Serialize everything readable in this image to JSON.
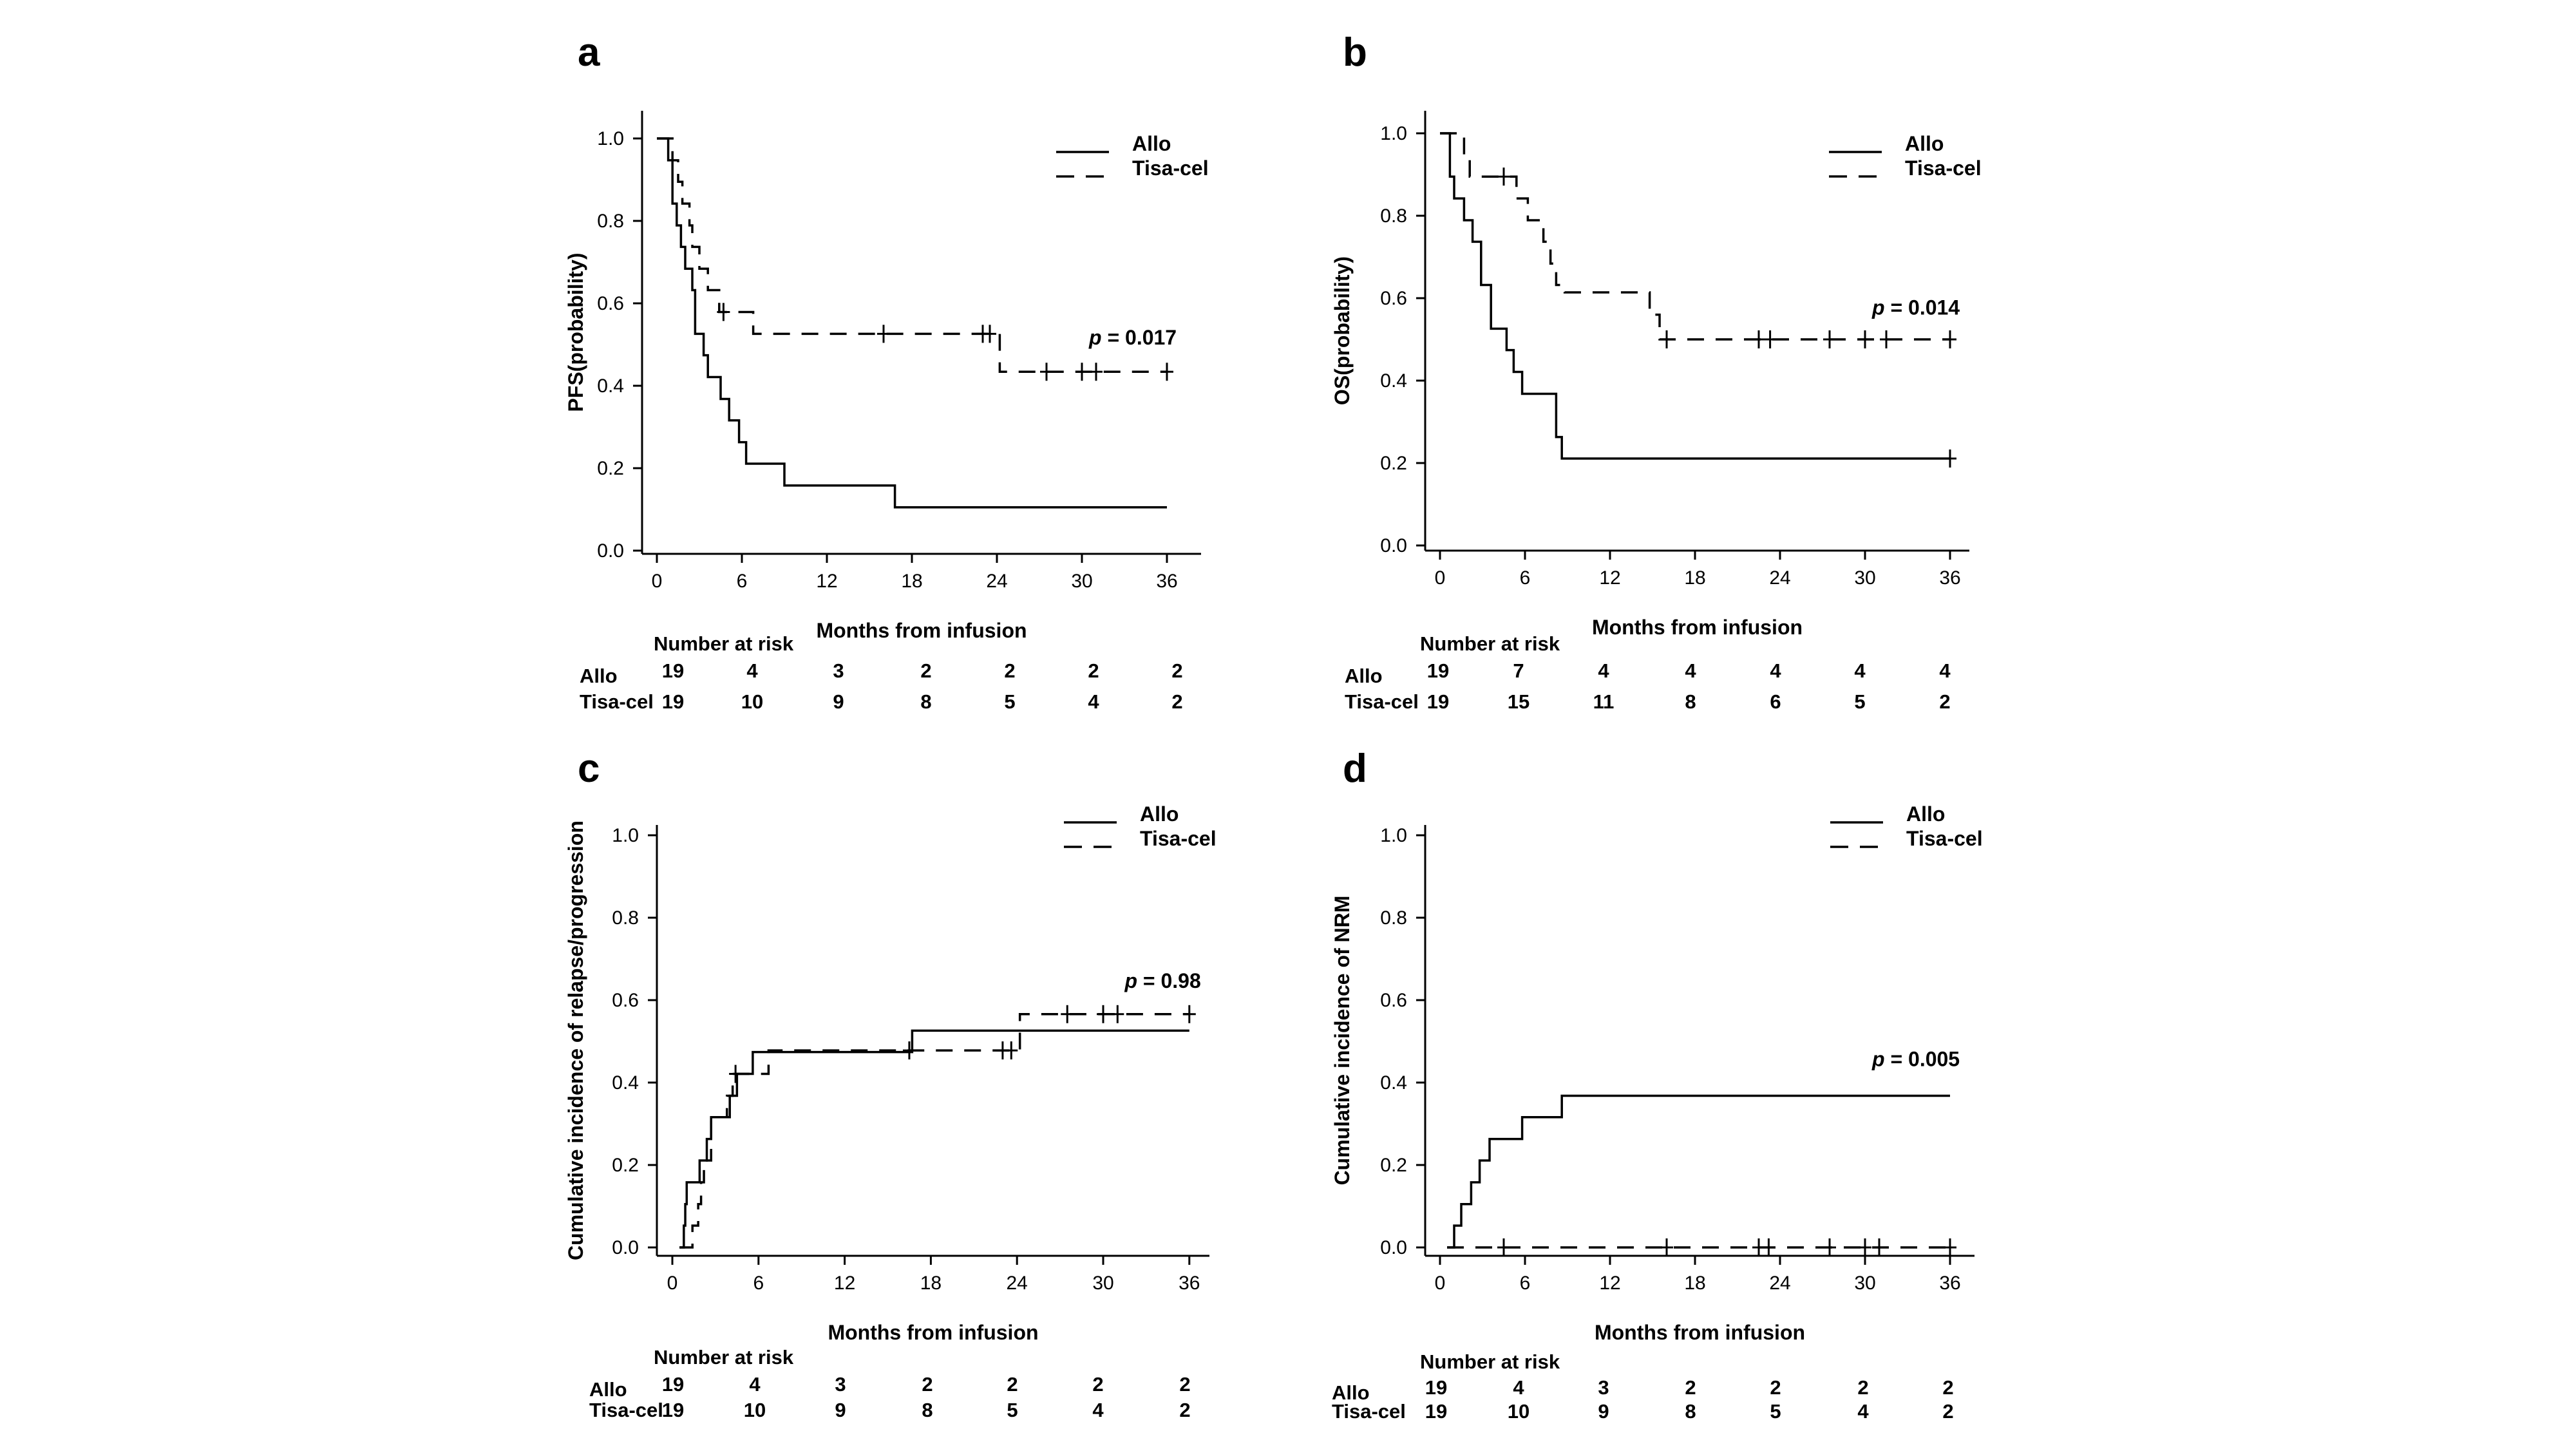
{
  "chart_data": [
    {
      "type": "line",
      "panel_label": "a",
      "xlabel": "Months from infusion",
      "ylabel": "PFS(probability)",
      "xticks": [
        0,
        6,
        12,
        18,
        24,
        30,
        36
      ],
      "yticks": [
        "0.0",
        "0.2",
        "0.4",
        "0.6",
        "0.8",
        "1.0"
      ],
      "xlim": [
        0,
        38
      ],
      "ylim": [
        0,
        1.0
      ],
      "legend_position": "top-right",
      "p_prefix": "p",
      "p_value": " = 0.017",
      "p_label_at": [
        30.5,
        0.5
      ],
      "series": [
        {
          "name": "Allo",
          "style": "solid",
          "steps": [
            [
              0,
              1.0
            ],
            [
              0.8,
              0.947
            ],
            [
              1.1,
              0.842
            ],
            [
              1.4,
              0.789
            ],
            [
              1.7,
              0.737
            ],
            [
              2.0,
              0.684
            ],
            [
              2.5,
              0.632
            ],
            [
              2.7,
              0.526
            ],
            [
              3.3,
              0.474
            ],
            [
              3.6,
              0.421
            ],
            [
              4.5,
              0.368
            ],
            [
              5.1,
              0.316
            ],
            [
              5.8,
              0.263
            ],
            [
              6.3,
              0.211
            ],
            [
              9.0,
              0.158
            ],
            [
              16.8,
              0.105
            ],
            [
              36.0,
              0.105
            ]
          ],
          "censor": []
        },
        {
          "name": "Tisa-cel",
          "style": "dashed",
          "steps": [
            [
              0,
              1.0
            ],
            [
              1.1,
              0.947
            ],
            [
              1.5,
              0.895
            ],
            [
              1.8,
              0.842
            ],
            [
              2.3,
              0.789
            ],
            [
              2.5,
              0.737
            ],
            [
              3.0,
              0.684
            ],
            [
              3.6,
              0.632
            ],
            [
              4.4,
              0.579
            ],
            [
              6.8,
              0.526
            ],
            [
              24.2,
              0.434
            ],
            [
              36.0,
              0.434
            ]
          ],
          "censor": [
            [
              4.7,
              0.579
            ],
            [
              16.0,
              0.526
            ],
            [
              23.0,
              0.526
            ],
            [
              23.5,
              0.526
            ],
            [
              27.5,
              0.434
            ],
            [
              30.0,
              0.434
            ],
            [
              31.0,
              0.434
            ],
            [
              36.0,
              0.434
            ]
          ]
        }
      ],
      "risk_table": {
        "title": "Number at risk",
        "rows": [
          {
            "label": "Allo",
            "values": [
              "19",
              "4",
              "3",
              "2",
              "2",
              "2",
              "2"
            ]
          },
          {
            "label": "Tisa-cel",
            "values": [
              "19",
              "10",
              "9",
              "8",
              "5",
              "4",
              "2"
            ]
          }
        ]
      }
    },
    {
      "type": "line",
      "panel_label": "b",
      "xlabel": "Months from infusion",
      "ylabel": "OS(probability)",
      "xticks": [
        0,
        6,
        12,
        18,
        24,
        30,
        36
      ],
      "yticks": [
        "0.0",
        "0.2",
        "0.4",
        "0.6",
        "0.8",
        "1.0"
      ],
      "xlim": [
        0,
        38
      ],
      "ylim": [
        0,
        1.0
      ],
      "legend_position": "top-right",
      "p_prefix": "p",
      "p_value": " = 0.014",
      "p_label_at": [
        30.5,
        0.56
      ],
      "series": [
        {
          "name": "Allo",
          "style": "solid",
          "steps": [
            [
              0,
              1.0
            ],
            [
              0.7,
              0.895
            ],
            [
              1.0,
              0.842
            ],
            [
              1.7,
              0.789
            ],
            [
              2.3,
              0.737
            ],
            [
              2.9,
              0.632
            ],
            [
              3.6,
              0.526
            ],
            [
              4.7,
              0.474
            ],
            [
              5.2,
              0.421
            ],
            [
              5.8,
              0.368
            ],
            [
              8.2,
              0.263
            ],
            [
              8.6,
              0.211
            ],
            [
              36.0,
              0.211
            ]
          ],
          "censor": [
            [
              36.0,
              0.211
            ]
          ]
        },
        {
          "name": "Tisa-cel",
          "style": "dashed",
          "steps": [
            [
              0,
              1.0
            ],
            [
              1.7,
              0.947
            ],
            [
              2.1,
              0.895
            ],
            [
              5.4,
              0.842
            ],
            [
              6.2,
              0.789
            ],
            [
              7.3,
              0.737
            ],
            [
              7.8,
              0.684
            ],
            [
              8.2,
              0.632
            ],
            [
              8.8,
              0.614
            ],
            [
              14.8,
              0.56
            ],
            [
              15.5,
              0.5
            ],
            [
              36.0,
              0.5
            ]
          ],
          "censor": [
            [
              4.5,
              0.895
            ],
            [
              16.0,
              0.5
            ],
            [
              22.5,
              0.5
            ],
            [
              23.3,
              0.5
            ],
            [
              27.5,
              0.5
            ],
            [
              30.0,
              0.5
            ],
            [
              31.5,
              0.5
            ],
            [
              36.0,
              0.5
            ]
          ]
        }
      ],
      "risk_table": {
        "title": "Number at risk",
        "rows": [
          {
            "label": "Allo",
            "values": [
              "19",
              "7",
              "4",
              "4",
              "4",
              "4",
              "4"
            ]
          },
          {
            "label": "Tisa-cel",
            "values": [
              "19",
              "15",
              "11",
              "8",
              "6",
              "5",
              "2"
            ]
          }
        ]
      }
    },
    {
      "type": "line",
      "panel_label": "c",
      "xlabel": "Months from infusion",
      "ylabel": "Cumulative incidence of relapse/progression",
      "xticks": [
        0,
        6,
        12,
        18,
        24,
        30,
        36
      ],
      "yticks": [
        "0.0",
        "0.2",
        "0.4",
        "0.6",
        "0.8",
        "1.0"
      ],
      "xlim": [
        0,
        38
      ],
      "ylim": [
        0,
        1.0
      ],
      "legend_position": "top-right",
      "p_prefix": "p",
      "p_value": " = 0.98",
      "p_label_at": [
        31.5,
        0.63
      ],
      "series": [
        {
          "name": "Allo",
          "style": "solid",
          "steps": [
            [
              0.5,
              0.0
            ],
            [
              0.8,
              0.053
            ],
            [
              0.9,
              0.105
            ],
            [
              1.0,
              0.158
            ],
            [
              1.9,
              0.211
            ],
            [
              2.4,
              0.263
            ],
            [
              2.7,
              0.316
            ],
            [
              4.0,
              0.368
            ],
            [
              4.5,
              0.421
            ],
            [
              5.6,
              0.474
            ],
            [
              16.7,
              0.526
            ],
            [
              36.0,
              0.526
            ]
          ],
          "censor": []
        },
        {
          "name": "Tisa-cel",
          "style": "dashed",
          "steps": [
            [
              0.5,
              0.0
            ],
            [
              1.1,
              0.0
            ],
            [
              1.4,
              0.053
            ],
            [
              1.8,
              0.105
            ],
            [
              2.0,
              0.158
            ],
            [
              2.2,
              0.211
            ],
            [
              2.7,
              0.316
            ],
            [
              3.8,
              0.368
            ],
            [
              4.2,
              0.421
            ],
            [
              6.7,
              0.478
            ],
            [
              24.2,
              0.566
            ],
            [
              36.0,
              0.566
            ]
          ],
          "censor": [
            [
              4.4,
              0.421
            ],
            [
              16.5,
              0.478
            ],
            [
              23.0,
              0.478
            ],
            [
              23.6,
              0.478
            ],
            [
              27.5,
              0.566
            ],
            [
              30.0,
              0.566
            ],
            [
              31.0,
              0.566
            ],
            [
              36.0,
              0.566
            ]
          ]
        }
      ],
      "risk_table": {
        "title": "Number at risk",
        "rows": [
          {
            "label": "Allo",
            "values": [
              "19",
              "4",
              "3",
              "2",
              "2",
              "2",
              "2"
            ]
          },
          {
            "label": "Tisa-cel",
            "values": [
              "19",
              "10",
              "9",
              "8",
              "5",
              "4",
              "2"
            ]
          }
        ]
      }
    },
    {
      "type": "line",
      "panel_label": "d",
      "xlabel": "Months from infusion",
      "ylabel": "Cumulative incidence of NRM",
      "xticks": [
        0,
        6,
        12,
        18,
        24,
        30,
        36
      ],
      "yticks": [
        "0.0",
        "0.2",
        "0.4",
        "0.6",
        "0.8",
        "1.0"
      ],
      "xlim": [
        0,
        38
      ],
      "ylim": [
        0,
        1.0
      ],
      "legend_position": "top-right",
      "p_prefix": "p",
      "p_value": " = 0.005",
      "p_label_at": [
        30.5,
        0.44
      ],
      "series": [
        {
          "name": "Allo",
          "style": "solid",
          "steps": [
            [
              0.5,
              0.0
            ],
            [
              1.0,
              0.053
            ],
            [
              1.5,
              0.105
            ],
            [
              2.2,
              0.158
            ],
            [
              2.8,
              0.211
            ],
            [
              3.5,
              0.263
            ],
            [
              5.8,
              0.316
            ],
            [
              8.6,
              0.368
            ],
            [
              36.0,
              0.368
            ]
          ],
          "censor": []
        },
        {
          "name": "Tisa-cel",
          "style": "dashed",
          "steps": [
            [
              0.5,
              0.0
            ],
            [
              36.0,
              0.0
            ]
          ],
          "censor": [
            [
              4.5,
              0.0
            ],
            [
              16.0,
              0.0
            ],
            [
              22.5,
              0.0
            ],
            [
              23.2,
              0.0
            ],
            [
              27.5,
              0.0
            ],
            [
              30.0,
              0.0
            ],
            [
              31.0,
              0.0
            ],
            [
              36.0,
              0.0
            ]
          ]
        }
      ],
      "risk_table": {
        "title": "Number at risk",
        "rows": [
          {
            "label": "Allo",
            "values": [
              "19",
              "4",
              "3",
              "2",
              "2",
              "2",
              "2"
            ]
          },
          {
            "label": "Tisa-cel",
            "values": [
              "19",
              "10",
              "9",
              "8",
              "5",
              "4",
              "2"
            ]
          }
        ]
      }
    }
  ]
}
